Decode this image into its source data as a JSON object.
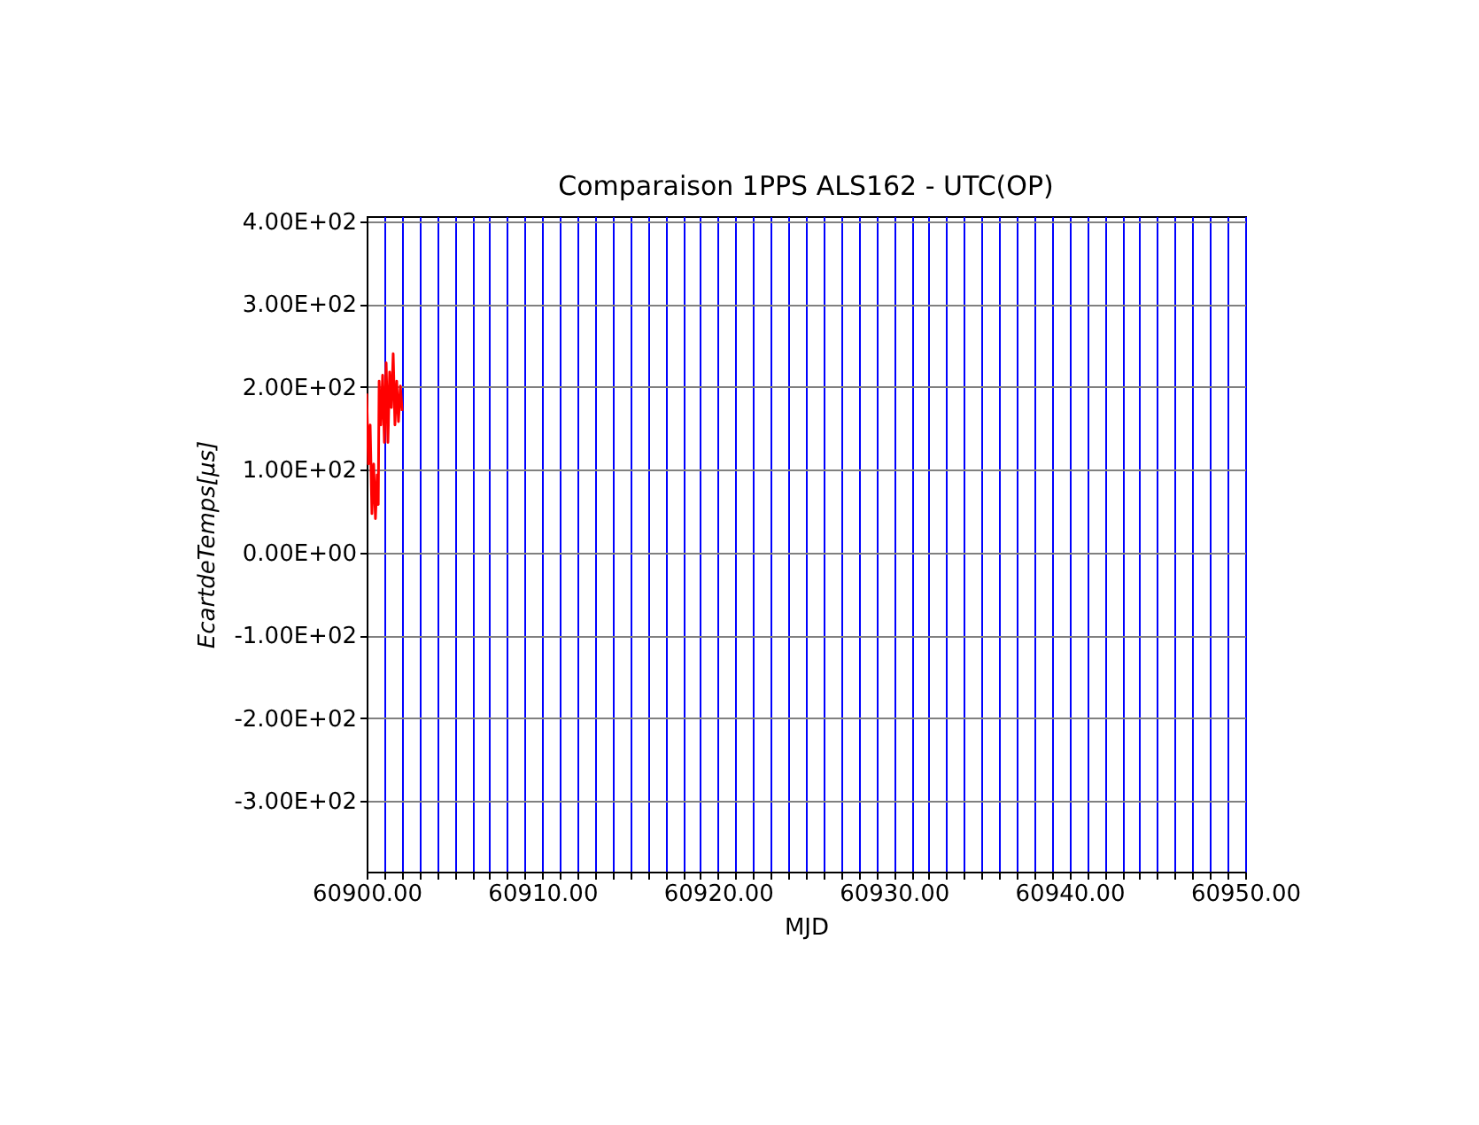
{
  "chart_data": {
    "type": "line",
    "title": "Comparaison 1PPS ALS162 - UTC(OP)",
    "xlabel": "MJD",
    "ylabel": "EcartdeTemps[μs]",
    "x": [
      60900.0,
      60900.1,
      60900.2,
      60900.3,
      60900.4,
      60900.5,
      60900.6,
      60900.66,
      60900.71,
      60900.81,
      60900.91,
      60901.01,
      60901.11,
      60901.21,
      60901.31,
      60901.41,
      60901.51,
      60901.61,
      60901.71,
      60901.81,
      60901.92,
      60902.02
    ],
    "series": [
      {
        "color": "#ff0000",
        "values": [
          192,
          107,
          154,
          47,
          107,
          41,
          94,
          58,
          207,
          154,
          214,
          133,
          229,
          133,
          218,
          175,
          240,
          154,
          207,
          158,
          201,
          171
        ]
      }
    ],
    "xlim": [
      60900,
      60950
    ],
    "ylim": [
      -385,
      406
    ],
    "xticks": [
      {
        "value": 60900,
        "label": "60900.00"
      },
      {
        "value": 60901,
        "label": null
      },
      {
        "value": 60902,
        "label": null
      },
      {
        "value": 60903,
        "label": null
      },
      {
        "value": 60904,
        "label": null
      },
      {
        "value": 60905,
        "label": null
      },
      {
        "value": 60906,
        "label": null
      },
      {
        "value": 60907,
        "label": null
      },
      {
        "value": 60908,
        "label": null
      },
      {
        "value": 60909,
        "label": null
      },
      {
        "value": 60910,
        "label": "60910.00"
      },
      {
        "value": 60911,
        "label": null
      },
      {
        "value": 60912,
        "label": null
      },
      {
        "value": 60913,
        "label": null
      },
      {
        "value": 60914,
        "label": null
      },
      {
        "value": 60915,
        "label": null
      },
      {
        "value": 60916,
        "label": null
      },
      {
        "value": 60917,
        "label": null
      },
      {
        "value": 60918,
        "label": null
      },
      {
        "value": 60919,
        "label": null
      },
      {
        "value": 60920,
        "label": "60920.00"
      },
      {
        "value": 60921,
        "label": null
      },
      {
        "value": 60922,
        "label": null
      },
      {
        "value": 60923,
        "label": null
      },
      {
        "value": 60924,
        "label": null
      },
      {
        "value": 60925,
        "label": null
      },
      {
        "value": 60926,
        "label": null
      },
      {
        "value": 60927,
        "label": null
      },
      {
        "value": 60928,
        "label": null
      },
      {
        "value": 60929,
        "label": null
      },
      {
        "value": 60930,
        "label": "60930.00"
      },
      {
        "value": 60931,
        "label": null
      },
      {
        "value": 60932,
        "label": null
      },
      {
        "value": 60933,
        "label": null
      },
      {
        "value": 60934,
        "label": null
      },
      {
        "value": 60935,
        "label": null
      },
      {
        "value": 60936,
        "label": null
      },
      {
        "value": 60937,
        "label": null
      },
      {
        "value": 60938,
        "label": null
      },
      {
        "value": 60939,
        "label": null
      },
      {
        "value": 60940,
        "label": "60940.00"
      },
      {
        "value": 60941,
        "label": null
      },
      {
        "value": 60942,
        "label": null
      },
      {
        "value": 60943,
        "label": null
      },
      {
        "value": 60944,
        "label": null
      },
      {
        "value": 60945,
        "label": null
      },
      {
        "value": 60946,
        "label": null
      },
      {
        "value": 60947,
        "label": null
      },
      {
        "value": 60948,
        "label": null
      },
      {
        "value": 60949,
        "label": null
      },
      {
        "value": 60950,
        "label": "60950.00"
      }
    ],
    "yticks": [
      {
        "value": -300,
        "label": "-3.00E+02"
      },
      {
        "value": -200,
        "label": "-2.00E+02"
      },
      {
        "value": -100,
        "label": "-1.00E+02"
      },
      {
        "value": 0,
        "label": "0.00E+00"
      },
      {
        "value": 100,
        "label": "1.00E+02"
      },
      {
        "value": 200,
        "label": "2.00E+02"
      },
      {
        "value": 300,
        "label": "3.00E+02"
      },
      {
        "value": 400,
        "label": "4.00E+02"
      }
    ],
    "grid": true
  }
}
